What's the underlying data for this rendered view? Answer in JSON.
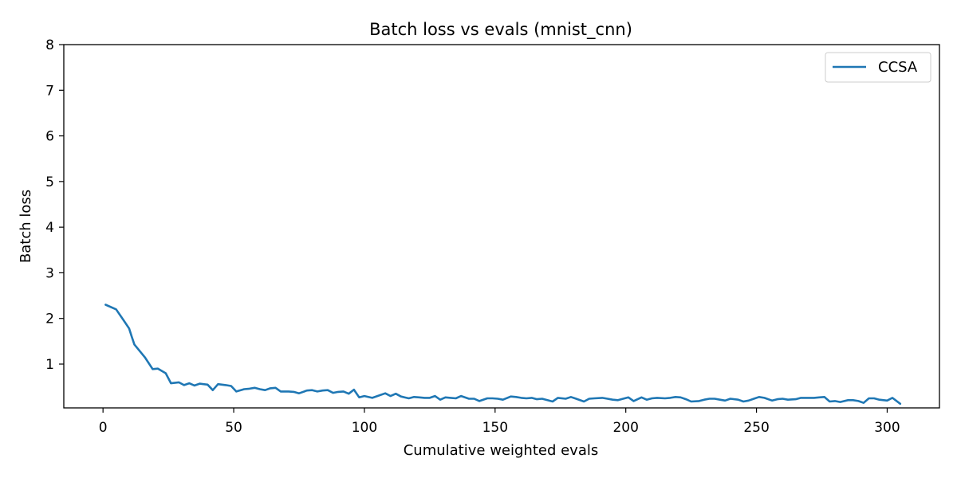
{
  "chart_data": {
    "type": "line",
    "title": "Batch loss vs evals (mnist_cnn)",
    "xlabel": "Cumulative weighted evals",
    "ylabel": "Batch loss",
    "xlim": [
      -15,
      320
    ],
    "ylim": [
      0.04,
      8
    ],
    "xticks": [
      0,
      50,
      100,
      150,
      200,
      250,
      300
    ],
    "yticks": [
      1,
      2,
      3,
      4,
      5,
      6,
      7,
      8
    ],
    "grid": false,
    "legend_position": "top-right",
    "series": [
      {
        "name": "CCSA",
        "color": "#1f77b4",
        "x": [
          1,
          5,
          8,
          10,
          11,
          12,
          16,
          19,
          21,
          24,
          26,
          29,
          31,
          33,
          35,
          37,
          40,
          42,
          44,
          47,
          49,
          51,
          54,
          56,
          58,
          60,
          62,
          64,
          66,
          68,
          71,
          73,
          75,
          78,
          80,
          82,
          84,
          86,
          88,
          90,
          92,
          94,
          96,
          98,
          100,
          103,
          105,
          108,
          110,
          112,
          114,
          117,
          119,
          121,
          123,
          125,
          127,
          129,
          131,
          133,
          135,
          137,
          140,
          142,
          144,
          147,
          149,
          151,
          153,
          156,
          158,
          160,
          162,
          164,
          166,
          168,
          170,
          172,
          174,
          177,
          179,
          181,
          184,
          186,
          188,
          191,
          193,
          195,
          197,
          199,
          201,
          203,
          206,
          208,
          210,
          212,
          215,
          217,
          219,
          221,
          223,
          225,
          228,
          230,
          232,
          234,
          236,
          238,
          240,
          243,
          245,
          247,
          249,
          251,
          253,
          256,
          258,
          260,
          262,
          265,
          267,
          270,
          272,
          274,
          276,
          278,
          280,
          282,
          285,
          287,
          289,
          291,
          293,
          295,
          297,
          300,
          302,
          305
        ],
        "y": [
          2.3,
          2.2,
          1.95,
          1.78,
          1.6,
          1.43,
          1.15,
          0.89,
          0.9,
          0.8,
          0.58,
          0.6,
          0.54,
          0.58,
          0.53,
          0.57,
          0.55,
          0.43,
          0.56,
          0.54,
          0.52,
          0.4,
          0.45,
          0.46,
          0.48,
          0.45,
          0.43,
          0.47,
          0.48,
          0.4,
          0.4,
          0.39,
          0.36,
          0.42,
          0.43,
          0.4,
          0.42,
          0.43,
          0.37,
          0.39,
          0.4,
          0.35,
          0.44,
          0.27,
          0.3,
          0.26,
          0.3,
          0.36,
          0.3,
          0.35,
          0.29,
          0.25,
          0.28,
          0.27,
          0.26,
          0.26,
          0.3,
          0.22,
          0.27,
          0.26,
          0.25,
          0.3,
          0.24,
          0.24,
          0.19,
          0.25,
          0.25,
          0.24,
          0.22,
          0.29,
          0.28,
          0.26,
          0.25,
          0.26,
          0.23,
          0.24,
          0.21,
          0.18,
          0.26,
          0.24,
          0.28,
          0.24,
          0.18,
          0.24,
          0.25,
          0.26,
          0.24,
          0.22,
          0.21,
          0.24,
          0.27,
          0.19,
          0.27,
          0.22,
          0.25,
          0.26,
          0.25,
          0.26,
          0.28,
          0.27,
          0.23,
          0.18,
          0.19,
          0.22,
          0.24,
          0.24,
          0.22,
          0.2,
          0.24,
          0.22,
          0.18,
          0.2,
          0.24,
          0.28,
          0.26,
          0.2,
          0.23,
          0.24,
          0.22,
          0.23,
          0.26,
          0.26,
          0.26,
          0.27,
          0.28,
          0.18,
          0.19,
          0.17,
          0.21,
          0.21,
          0.19,
          0.15,
          0.25,
          0.25,
          0.22,
          0.2,
          0.26,
          0.13
        ]
      }
    ]
  }
}
